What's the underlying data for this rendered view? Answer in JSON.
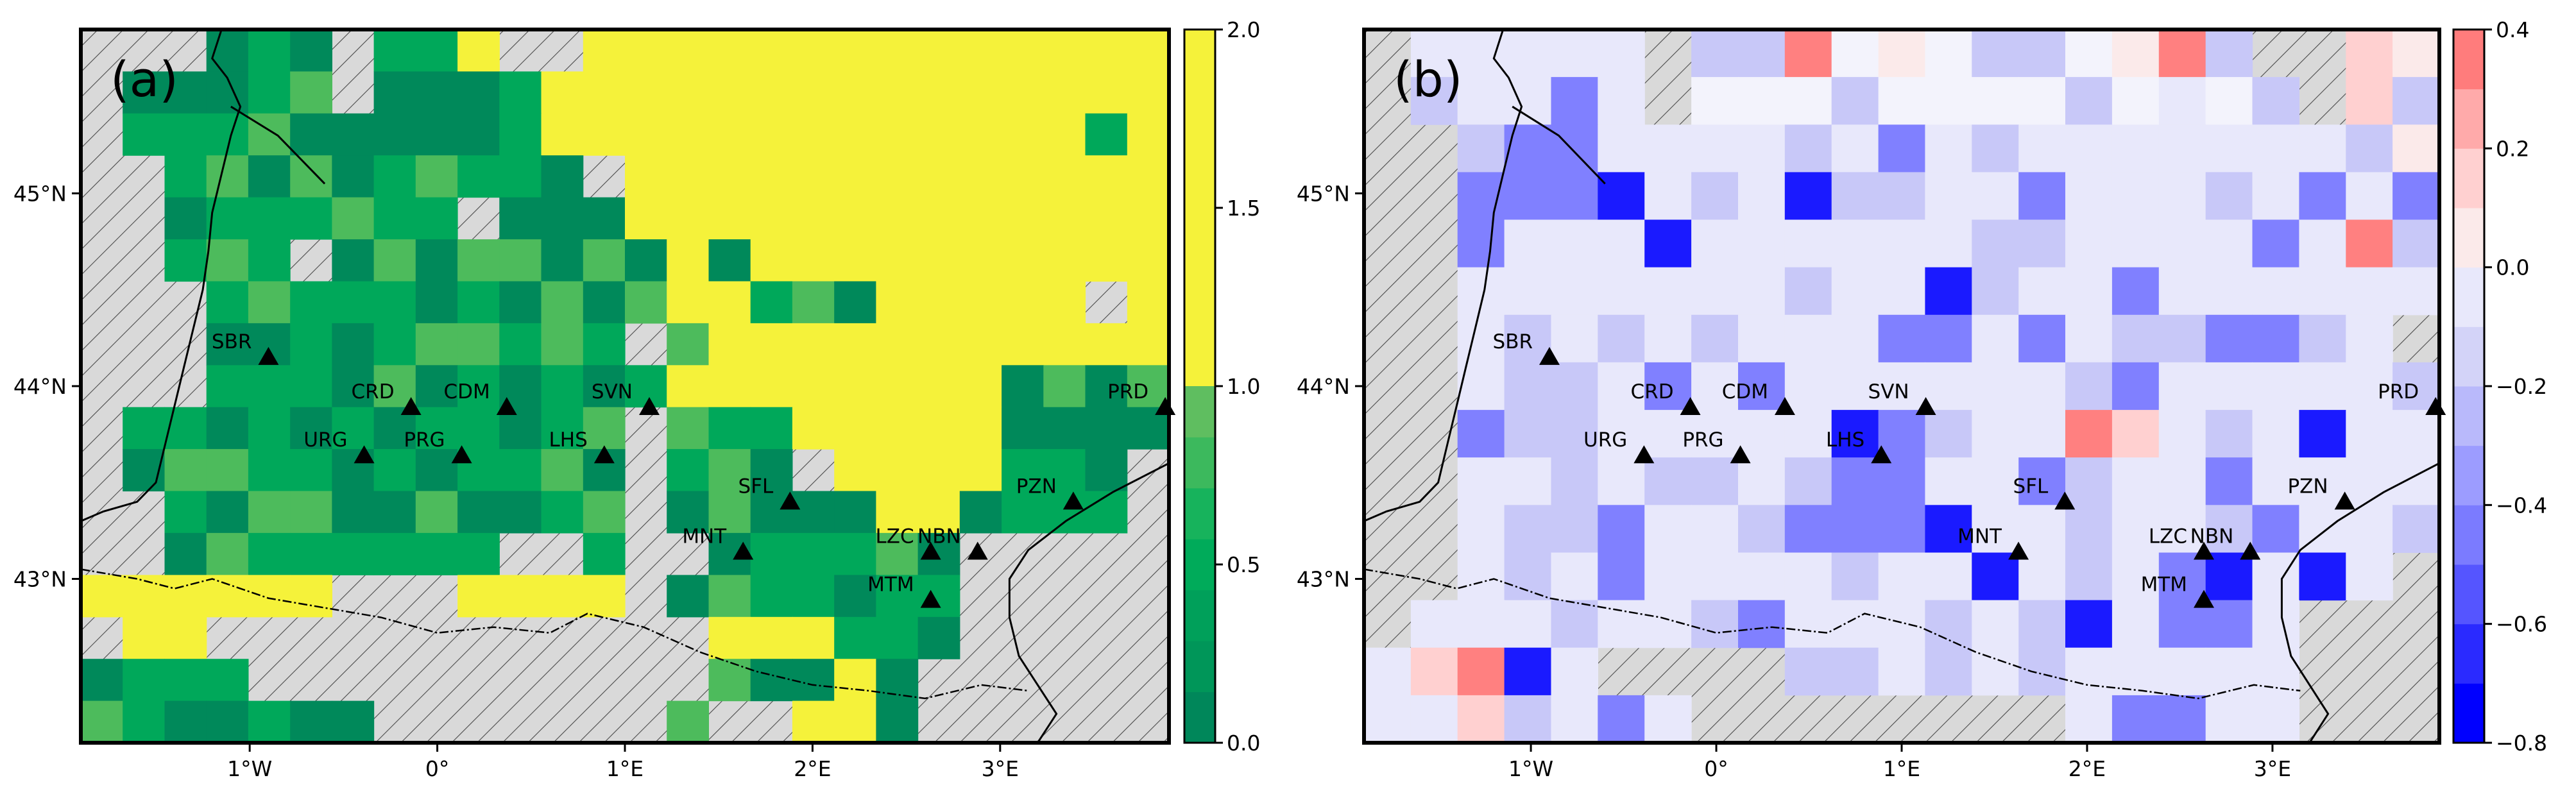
{
  "panels": [
    {
      "label": "(a)",
      "colormap": "green",
      "colorbar": {
        "ticks": [
          "0.0",
          "0.5",
          "1.0",
          "1.5",
          "2.0"
        ],
        "range": [
          0,
          2
        ]
      },
      "grid_cols": 26,
      "grid_rows": 17,
      "cells": [
        "xxxGGGxGGYxxYYYYYYYYYYYYYY",
        "xGGGGGxGGGGYYYYYYYYYYYYYYY",
        "xGGGGGGGGGGYYYYYYYYYYYYYGY",
        "xxGGGGGGGGGGxYYYYYYYYYYYYY",
        "xxGGGGGGGxGGGYYYYYYYYYYYYY",
        "xxGGGxGGGGGGGGYGYYYYYYYYYY",
        "xxxGGGGGGGGGGGYYGGGYYYYYxY",
        "xxxGGGGGGGGGGxGYYYYYYYYYYY",
        "xxxGGGGGGGGGGGYYYYYYYYGGGG",
        "xGGGGGGGGGGGGxGGGYYYYYGGGG",
        "xGGGGGGGGGGGGxGGGxYYYYGGGx",
        "xxGGGGGGGGGGGxGGGGGYYGGGGx",
        "xxGGGGGGGGxxGxxGGGGGGxxxxx",
        "YYYYYYxxxYYYYxGGGGGGGxxxxx",
        "xYYxxxxxxxxxxxxYYYGGGxxxxx",
        "GGGGxxxxxxxxxxxGGGYGxxxxxx",
        "GGGGGGGxxxxxxxGxxYYGxxxxxx"
      ],
      "stations": [
        {
          "name": "SBR",
          "lon": -0.9,
          "lat": 44.15
        },
        {
          "name": "CRD",
          "lon": -0.14,
          "lat": 43.89
        },
        {
          "name": "CDM",
          "lon": 0.37,
          "lat": 43.89
        },
        {
          "name": "SVN",
          "lon": 1.13,
          "lat": 43.89
        },
        {
          "name": "URG",
          "lon": -0.39,
          "lat": 43.64
        },
        {
          "name": "PRG",
          "lon": 0.13,
          "lat": 43.64
        },
        {
          "name": "LHS",
          "lon": 0.89,
          "lat": 43.64
        },
        {
          "name": "PRD",
          "lon": 3.88,
          "lat": 43.89
        },
        {
          "name": "SFL",
          "lon": 1.88,
          "lat": 43.4
        },
        {
          "name": "PZN",
          "lon": 3.39,
          "lat": 43.4
        },
        {
          "name": "MNT",
          "lon": 1.63,
          "lat": 43.14
        },
        {
          "name": "LZC",
          "lon": 2.63,
          "lat": 43.14
        },
        {
          "name": "NBN",
          "lon": 2.88,
          "lat": 43.14
        },
        {
          "name": "MTM",
          "lon": 2.63,
          "lat": 42.89
        }
      ],
      "x_ticks": [
        "1°W",
        "0°",
        "1°E",
        "2°E",
        "3°E"
      ],
      "y_ticks": [
        "45°N",
        "44°N",
        "43°N"
      ]
    },
    {
      "label": "(b)",
      "colormap": "bwr",
      "colorbar": {
        "ticks": [
          "0.4",
          "0.2",
          "0.0",
          "−0.2",
          "−0.4",
          "−0.6",
          "−0.8"
        ],
        "range": [
          -0.8,
          0.4
        ]
      },
      "grid_cols": 23,
      "grid_rows": 15,
      "cells": [
        "xBBBBBxSSRSVSSSSVRSxxRV",
        "xBBBBBxSSSSSSSSSSBSBxRS",
        "xxBBBBBBBBBBBBBBBBBBBBV",
        "xxBBBBBBBBBBBBBBBBBBBBB",
        "xxBBBBBBBBBBBBBBBBBBBRB",
        "xxBBBBBBBBBBBBBBBBBBBBB",
        "xxBBBBBBBBBBBBBBBBBBBBx",
        "xxBBBBBBBBBBBBBBBBBBBBB",
        "xxBBBBBBBBBBBBBRRBBBBBB",
        "xxBBBBBBBBBBBBBBBBBBBBB",
        "xxBBBBBBBBBBBBBBBBBBBBB",
        "xxBBBBBBBBBBBBBBBBBBBBx",
        "xBBBBBBBBBBBBBBBBBBBxxx",
        "BRRBBxxxxBBBBBBBBBBBxxx",
        "BBRBBBBxxxxxxxxBBBBBxxx"
      ],
      "stations": [
        {
          "name": "SBR",
          "lon": -0.9,
          "lat": 44.15
        },
        {
          "name": "CRD",
          "lon": -0.14,
          "lat": 43.89
        },
        {
          "name": "CDM",
          "lon": 0.37,
          "lat": 43.89
        },
        {
          "name": "SVN",
          "lon": 1.13,
          "lat": 43.89
        },
        {
          "name": "URG",
          "lon": -0.39,
          "lat": 43.64
        },
        {
          "name": "PRG",
          "lon": 0.13,
          "lat": 43.64
        },
        {
          "name": "LHS",
          "lon": 0.89,
          "lat": 43.64
        },
        {
          "name": "PRD",
          "lon": 3.88,
          "lat": 43.89
        },
        {
          "name": "SFL",
          "lon": 1.88,
          "lat": 43.4
        },
        {
          "name": "PZN",
          "lon": 3.39,
          "lat": 43.4
        },
        {
          "name": "MNT",
          "lon": 1.63,
          "lat": 43.14
        },
        {
          "name": "LZC",
          "lon": 2.63,
          "lat": 43.14
        },
        {
          "name": "NBN",
          "lon": 2.88,
          "lat": 43.14
        },
        {
          "name": "MTM",
          "lon": 2.63,
          "lat": 42.89
        }
      ],
      "x_ticks": [
        "1°W",
        "0°",
        "1°E",
        "2°E",
        "3°E"
      ],
      "y_ticks": [
        "45°N",
        "44°N",
        "43°N"
      ]
    }
  ],
  "map_extent": {
    "lon": [
      -1.9,
      3.9
    ],
    "lat": [
      42.15,
      45.85
    ]
  },
  "colors": {
    "yellow": "#f5f23a",
    "green_dark": "#00895a",
    "green_mid": "#00a85a",
    "green_light": "#4dbb5c",
    "blue_strong": "#1a1aff",
    "blue_mid": "#8080ff",
    "blue_light": "#c8c8f8",
    "blue_pale": "#e8e8fb",
    "red_light": "#ffd0d0",
    "red_mid": "#ff8080",
    "hatch_bg": "#d9d9d9"
  }
}
